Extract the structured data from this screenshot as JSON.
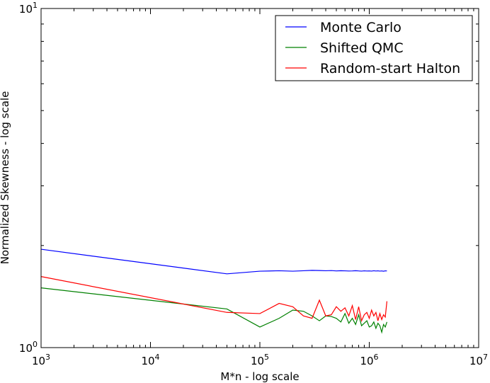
{
  "chart_data": {
    "type": "line",
    "title": "",
    "xlabel": "M*n - log scale",
    "ylabel": "Normalized Skewness - log scale",
    "x_scale": "log",
    "y_scale": "log",
    "xlim": [
      1000,
      10000000
    ],
    "ylim": [
      1,
      10
    ],
    "grid": false,
    "legend_position": "top-right",
    "x_major_ticks": [
      {
        "value": 1000,
        "base": "10",
        "exp": "3"
      },
      {
        "value": 10000,
        "base": "10",
        "exp": "4"
      },
      {
        "value": 100000,
        "base": "10",
        "exp": "5"
      },
      {
        "value": 1000000,
        "base": "10",
        "exp": "6"
      },
      {
        "value": 10000000,
        "base": "10",
        "exp": "7"
      }
    ],
    "y_major_ticks": [
      {
        "value": 1,
        "base": "10",
        "exp": "0"
      },
      {
        "value": 10,
        "base": "10",
        "exp": "1"
      }
    ],
    "series": [
      {
        "name": "Monte Carlo",
        "color": "#0000ff",
        "x": [
          1000,
          50000,
          100000,
          150000,
          200000,
          250000,
          300000,
          350000,
          400000,
          450000,
          500000,
          550000,
          600000,
          650000,
          700000,
          750000,
          800000,
          850000,
          900000,
          950000,
          1000000,
          1050000,
          1100000,
          1150000,
          1200000,
          1250000,
          1300000,
          1350000,
          1400000,
          1450000
        ],
        "y": [
          1.95,
          1.65,
          1.68,
          1.685,
          1.68,
          1.685,
          1.69,
          1.688,
          1.685,
          1.687,
          1.683,
          1.686,
          1.684,
          1.682,
          1.683,
          1.686,
          1.683,
          1.681,
          1.684,
          1.682,
          1.683,
          1.681,
          1.685,
          1.682,
          1.684,
          1.681,
          1.683,
          1.68,
          1.684,
          1.683
        ]
      },
      {
        "name": "Shifted QMC",
        "color": "#008000",
        "x": [
          1000,
          50000,
          100000,
          150000,
          200000,
          250000,
          300000,
          350000,
          400000,
          450000,
          500000,
          550000,
          600000,
          650000,
          700000,
          750000,
          800000,
          850000,
          900000,
          950000,
          1000000,
          1050000,
          1100000,
          1150000,
          1200000,
          1250000,
          1300000,
          1350000,
          1400000,
          1450000
        ],
        "y": [
          1.5,
          1.3,
          1.15,
          1.22,
          1.29,
          1.28,
          1.24,
          1.2,
          1.24,
          1.235,
          1.22,
          1.19,
          1.26,
          1.18,
          1.22,
          1.17,
          1.25,
          1.16,
          1.18,
          1.2,
          1.15,
          1.16,
          1.19,
          1.14,
          1.18,
          1.16,
          1.11,
          1.17,
          1.15,
          1.19
        ]
      },
      {
        "name": "Random-start Halton",
        "color": "#ff0000",
        "x": [
          1000,
          50000,
          100000,
          150000,
          200000,
          250000,
          300000,
          350000,
          400000,
          450000,
          500000,
          550000,
          600000,
          650000,
          700000,
          750000,
          800000,
          850000,
          900000,
          950000,
          1000000,
          1050000,
          1100000,
          1150000,
          1200000,
          1250000,
          1300000,
          1350000,
          1400000,
          1450000
        ],
        "y": [
          1.62,
          1.27,
          1.26,
          1.35,
          1.32,
          1.24,
          1.22,
          1.38,
          1.24,
          1.25,
          1.32,
          1.28,
          1.31,
          1.24,
          1.33,
          1.21,
          1.32,
          1.2,
          1.25,
          1.27,
          1.22,
          1.29,
          1.24,
          1.27,
          1.2,
          1.26,
          1.21,
          1.25,
          1.23,
          1.37
        ]
      }
    ]
  }
}
